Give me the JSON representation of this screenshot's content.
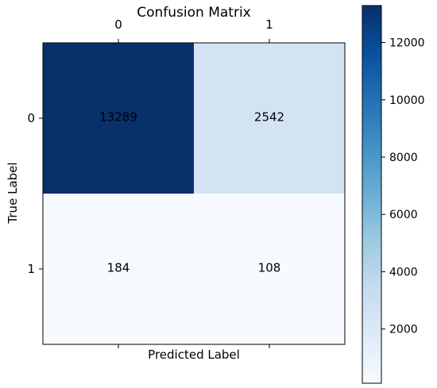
{
  "chart_data": {
    "type": "heatmap",
    "title": "Confusion Matrix",
    "xlabel": "Predicted Label",
    "ylabel": "True Label",
    "x_categories": [
      "0",
      "1"
    ],
    "y_categories": [
      "0",
      "1"
    ],
    "values": [
      [
        13289,
        2542
      ],
      [
        184,
        108
      ]
    ],
    "colormap": "Blues",
    "colorbar": {
      "vmin": 108,
      "vmax": 13289,
      "ticks": [
        2000,
        4000,
        6000,
        8000,
        10000,
        12000
      ],
      "tick_labels": [
        "2000",
        "4000",
        "6000",
        "8000",
        "10000",
        "12000"
      ]
    },
    "x_tick_position": "top",
    "legend": "colorbar-right",
    "grid": false
  }
}
